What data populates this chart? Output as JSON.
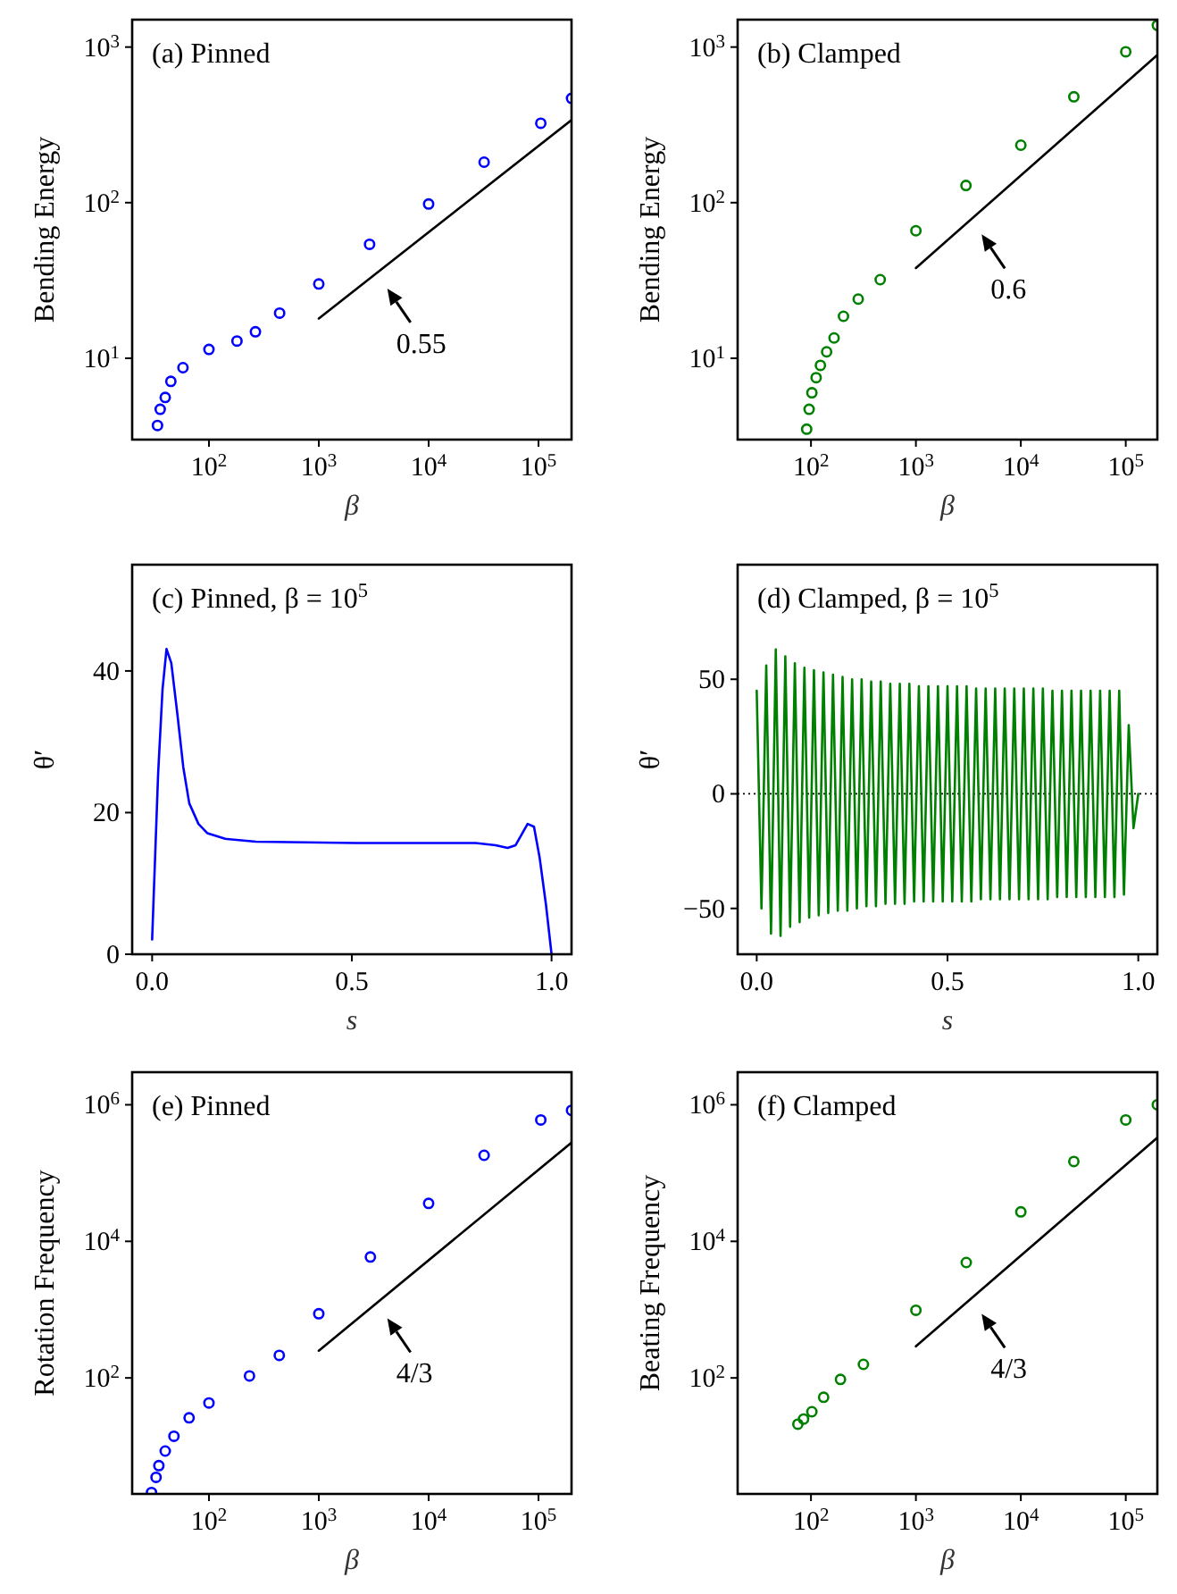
{
  "chart_data": [
    {
      "type": "scatter",
      "title": "(a) Pinned",
      "xlabel": "β",
      "ylabel": "Bending Energy",
      "log": "xy",
      "xlim": [
        20,
        200000
      ],
      "ylim": [
        3,
        1500
      ],
      "xticks": [
        {
          "value": 100,
          "label": "10$^{2}$"
        },
        {
          "value": 1000,
          "label": "10$^{3}$"
        },
        {
          "value": 10000,
          "label": "10$^{4}$"
        },
        {
          "value": 100000,
          "label": "10$^{5}$"
        }
      ],
      "yticks": [
        {
          "value": 10,
          "label": "10$^{1}$"
        },
        {
          "value": 100,
          "label": "10$^{2}$"
        },
        {
          "value": 1000,
          "label": "10$^{3}$"
        }
      ],
      "series": [
        {
          "color": "#0000ff",
          "marker": "circle",
          "x": [
            34,
            36,
            40,
            45,
            58,
            100,
            180,
            265,
            440,
            1000,
            2900,
            10000,
            32000,
            105000,
            200000
          ],
          "values": [
            3.7,
            4.7,
            5.6,
            7.1,
            8.7,
            11.4,
            12.9,
            14.8,
            19.5,
            30,
            54,
            98,
            182,
            324,
            468
          ]
        },
        {
          "type": "line",
          "marker": "none",
          "color": "#000000",
          "x": [
            1000,
            200000
          ],
          "values": [
            18,
            340
          ]
        }
      ],
      "annotations": [
        "0.55"
      ]
    },
    {
      "type": "scatter",
      "title": "(b) Clamped",
      "xlabel": "β",
      "ylabel": "Bending Energy",
      "log": "xy",
      "xlim": [
        20,
        200000
      ],
      "ylim": [
        3,
        1500
      ],
      "xticks": [
        {
          "value": 100,
          "label": "10$^{2}$"
        },
        {
          "value": 1000,
          "label": "10$^{3}$"
        },
        {
          "value": 10000,
          "label": "10$^{4}$"
        },
        {
          "value": 100000,
          "label": "10$^{5}$"
        }
      ],
      "yticks": [
        {
          "value": 10,
          "label": "10$^{1}$"
        },
        {
          "value": 100,
          "label": "10$^{2}$"
        },
        {
          "value": 1000,
          "label": "10$^{3}$"
        }
      ],
      "series": [
        {
          "color": "#008000",
          "marker": "circle",
          "x": [
            91,
            96,
            102,
            112,
            123,
            141,
            166,
            204,
            282,
            457,
            1000,
            3000,
            10000,
            32000,
            100000,
            200000
          ],
          "values": [
            3.5,
            4.7,
            6,
            7.5,
            9,
            11,
            13.5,
            18.6,
            24,
            32,
            66,
            129,
            234,
            479,
            933,
            1380
          ]
        },
        {
          "type": "line",
          "marker": "none",
          "color": "#000000",
          "x": [
            1000,
            200000
          ],
          "values": [
            38,
            890
          ]
        }
      ],
      "annotations": [
        "0.6"
      ]
    },
    {
      "type": "line",
      "title": "(c) Pinned, β = 10$^{5}$",
      "xlabel": "s",
      "ylabel": "θ′",
      "xlim": [
        -0.05,
        1.05
      ],
      "ylim": [
        0,
        55
      ],
      "xticks": [
        {
          "value": 0,
          "label": "0.0"
        },
        0.5,
        {
          "value": 1,
          "label": "1.0"
        }
      ],
      "yticks": [
        0,
        20,
        40
      ],
      "series": [
        {
          "color": "#0000ff",
          "x": [
            0,
            0.015,
            0.026,
            0.036,
            0.048,
            0.063,
            0.078,
            0.093,
            0.116,
            0.138,
            0.183,
            0.26,
            0.51,
            0.81,
            0.86,
            0.89,
            0.91,
            0.94,
            0.956,
            0.97,
            0.986,
            1
          ],
          "values": [
            2.1,
            25.5,
            37.4,
            43.1,
            41.1,
            34,
            26.4,
            21.3,
            18.4,
            17.1,
            16.3,
            15.9,
            15.7,
            15.7,
            15.4,
            15,
            15.4,
            18.4,
            18,
            13.7,
            7,
            0
          ]
        }
      ]
    },
    {
      "type": "line",
      "title": "(d) Clamped, β = 10$^{5}$",
      "xlabel": "s",
      "ylabel": "θ′",
      "xlim": [
        -0.05,
        1.05
      ],
      "ylim": [
        -70,
        100
      ],
      "xticks": [
        {
          "value": 0,
          "label": "0.0"
        },
        0.5,
        {
          "value": 1,
          "label": "1.0"
        }
      ],
      "yticks": [
        {
          "value": -50,
          "label": "−50"
        },
        0,
        50
      ],
      "ref_lines": [
        {
          "axis": "y",
          "value": 0,
          "color": "#000000",
          "line_style": "dotted"
        }
      ],
      "series": [
        {
          "color": "#008000",
          "x": [
            0,
            0.0125,
            0.025,
            0.0375,
            0.05,
            0.0625,
            0.075,
            0.0875,
            0.1,
            0.1125,
            0.125,
            0.1375,
            0.15,
            0.1625,
            0.175,
            0.1875,
            0.2,
            0.2125,
            0.225,
            0.2375,
            0.25,
            0.2625,
            0.275,
            0.2875,
            0.3,
            0.3125,
            0.325,
            0.3375,
            0.35,
            0.3625,
            0.375,
            0.3875,
            0.4,
            0.4125,
            0.425,
            0.4375,
            0.45,
            0.4625,
            0.475,
            0.4875,
            0.5,
            0.5125,
            0.525,
            0.5375,
            0.55,
            0.5625,
            0.575,
            0.5875,
            0.6,
            0.6125,
            0.625,
            0.6375,
            0.65,
            0.6625,
            0.675,
            0.6875,
            0.7,
            0.7125,
            0.725,
            0.7375,
            0.75,
            0.7625,
            0.775,
            0.7875,
            0.8,
            0.8125,
            0.825,
            0.8375,
            0.85,
            0.8625,
            0.875,
            0.8875,
            0.9,
            0.9125,
            0.925,
            0.9375,
            0.95,
            0.9625,
            0.975,
            0.9875,
            1
          ],
          "values": [
            45,
            -50,
            56,
            -61,
            63,
            -62,
            60,
            -58,
            57,
            -56,
            55,
            -54,
            54,
            -53,
            53,
            -52,
            52,
            -51,
            51,
            -51,
            50,
            -50,
            50,
            -49,
            49,
            -49,
            49,
            -48,
            48,
            -48,
            48,
            -48,
            48,
            -47,
            47,
            -47,
            47,
            -47,
            47,
            -47,
            47,
            -47,
            47,
            -47,
            47,
            -47,
            46,
            -46,
            46,
            -46,
            46,
            -46,
            46,
            -46,
            46,
            -46,
            46,
            -46,
            46,
            -46,
            46,
            -46,
            45,
            -45,
            45,
            -45,
            45,
            -45,
            45,
            -45,
            45,
            -45,
            45,
            -45,
            45,
            -45,
            45,
            -44,
            30,
            -15,
            0
          ]
        }
      ]
    },
    {
      "type": "scatter",
      "title": "(e) Pinned",
      "xlabel": "β",
      "ylabel": "Rotation Frequency",
      "log": "xy",
      "xlim": [
        20,
        200000
      ],
      "ylim": [
        2,
        3000000
      ],
      "xticks": [
        {
          "value": 100,
          "label": "10$^{2}$"
        },
        {
          "value": 1000,
          "label": "10$^{3}$"
        },
        {
          "value": 10000,
          "label": "10$^{4}$"
        },
        {
          "value": 100000,
          "label": "10$^{5}$"
        }
      ],
      "yticks": [
        {
          "value": 100,
          "label": "10$^{2}$"
        },
        {
          "value": 10000,
          "label": "10$^{4}$"
        },
        {
          "value": 1000000,
          "label": "10$^{6}$"
        }
      ],
      "series": [
        {
          "color": "#0000ff",
          "marker": "circle",
          "x": [
            30,
            33,
            35,
            40,
            48,
            66,
            100,
            234,
            437,
            1000,
            2950,
            10000,
            32000,
            105000,
            200000
          ],
          "values": [
            2.1,
            3.5,
            5.2,
            8.5,
            14,
            26,
            43,
            107,
            214,
            870,
            5900,
            36000,
            182000,
            600000,
            830000
          ]
        },
        {
          "type": "line",
          "marker": "none",
          "color": "#000000",
          "x": [
            1000,
            200000
          ],
          "values": [
            250,
            280000
          ]
        }
      ],
      "annotations": [
        "4/3"
      ]
    },
    {
      "type": "scatter",
      "title": "(f) Clamped",
      "xlabel": "β",
      "ylabel": "Beating Frequency",
      "log": "xy",
      "xlim": [
        20,
        200000
      ],
      "ylim": [
        2,
        3000000
      ],
      "xticks": [
        {
          "value": 100,
          "label": "10$^{2}$"
        },
        {
          "value": 1000,
          "label": "10$^{3}$"
        },
        {
          "value": 10000,
          "label": "10$^{4}$"
        },
        {
          "value": 100000,
          "label": "10$^{5}$"
        }
      ],
      "yticks": [
        {
          "value": 100,
          "label": "10$^{2}$"
        },
        {
          "value": 10000,
          "label": "10$^{4}$"
        },
        {
          "value": 1000000,
          "label": "10$^{6}$"
        }
      ],
      "series": [
        {
          "color": "#008000",
          "marker": "circle",
          "x": [
            75,
            85,
            102,
            132,
            191,
            316,
            1000,
            3020,
            10000,
            32000,
            100000,
            200000
          ],
          "values": [
            21,
            25,
            32,
            52,
            95,
            158,
            980,
            4900,
            27000,
            148000,
            600000,
            1000000
          ]
        },
        {
          "type": "line",
          "marker": "none",
          "color": "#000000",
          "x": [
            1000,
            200000
          ],
          "values": [
            290,
            330000
          ]
        }
      ],
      "annotations": [
        "4/3"
      ]
    }
  ]
}
